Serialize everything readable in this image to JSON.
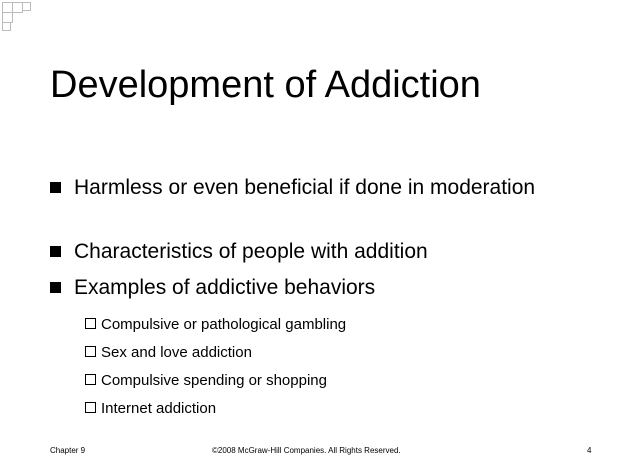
{
  "title": "Development of Addiction",
  "bullets": [
    "Harmless or even beneficial if done in moderation",
    "Characteristics of people with addition",
    "Examples of addictive behaviors"
  ],
  "sub_bullets": [
    "Compulsive or pathological gambling",
    "Sex and love addiction",
    "Compulsive spending or shopping",
    "Internet addiction"
  ],
  "footer": {
    "chapter": "Chapter 9",
    "copyright": "©2008 McGraw-Hill Companies. All Rights Reserved.",
    "page": "4"
  }
}
